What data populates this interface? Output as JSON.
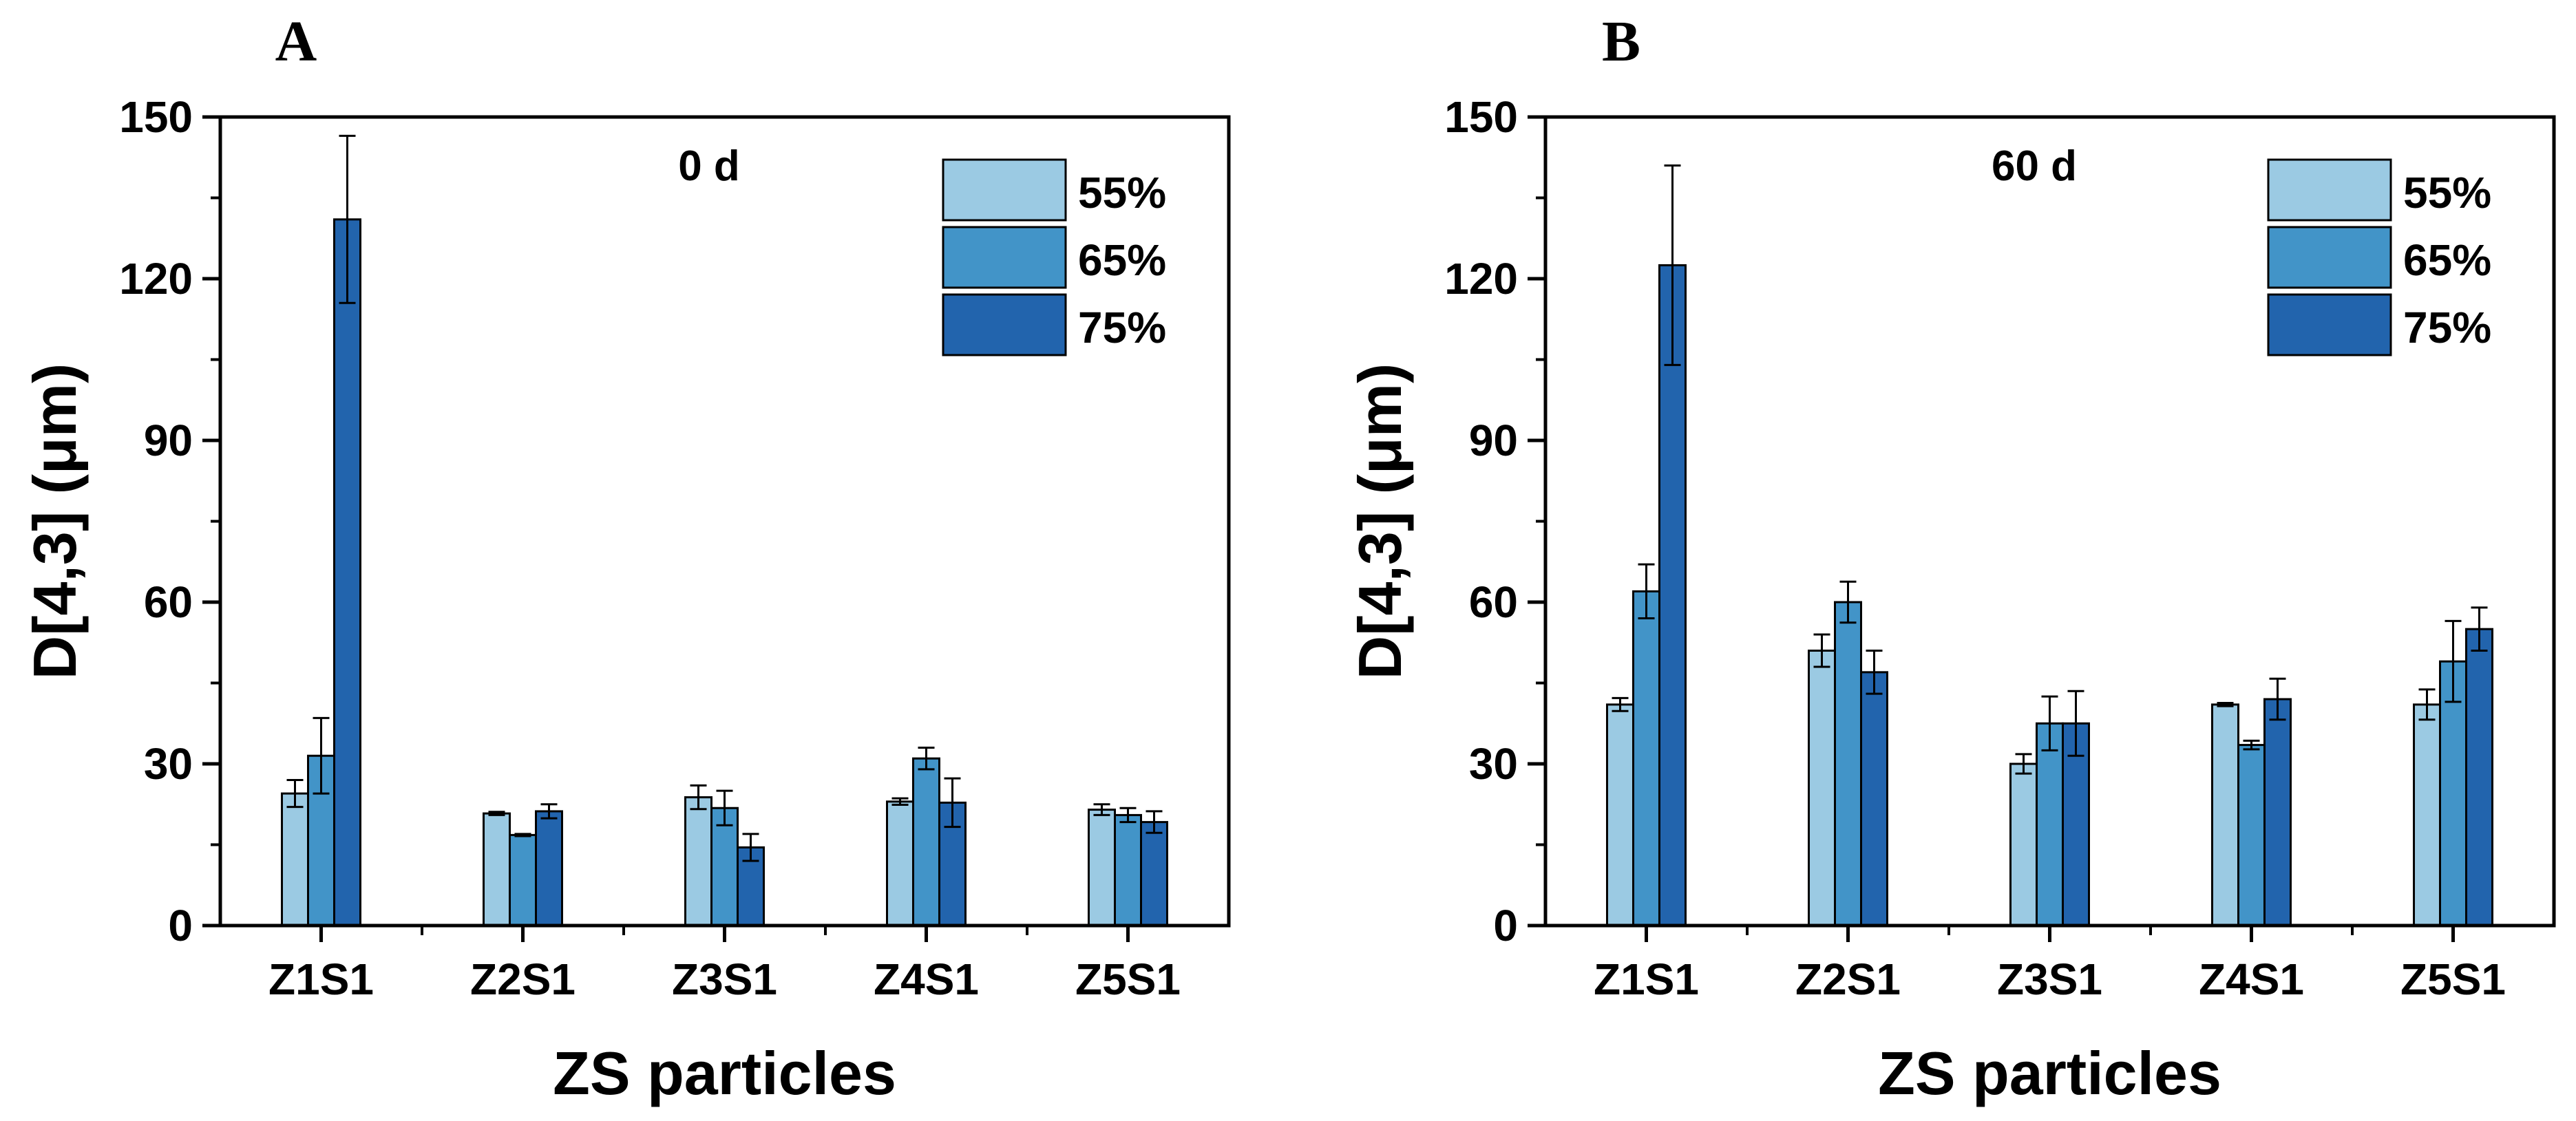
{
  "chart_data": [
    {
      "type": "bar",
      "panel_label": "A",
      "annotation": "0 d",
      "xlabel": "ZS particles",
      "ylabel": "D[4,3] (μm)",
      "ylim": [
        0,
        150
      ],
      "yticks": [
        0,
        30,
        60,
        90,
        120,
        150
      ],
      "categories": [
        "Z1S1",
        "Z2S1",
        "Z3S1",
        "Z4S1",
        "Z5S1"
      ],
      "legend_position": "top-right",
      "series": [
        {
          "name": "55%",
          "color": "#9BCAE3",
          "values": [
            24.5,
            20.8,
            23.8,
            23.0,
            21.5
          ],
          "errors": [
            2.5,
            0.3,
            2.2,
            0.6,
            1.0
          ]
        },
        {
          "name": "65%",
          "color": "#4294C8",
          "values": [
            31.5,
            16.8,
            21.8,
            31.0,
            20.5
          ],
          "errors": [
            7.0,
            0.2,
            3.2,
            2.0,
            1.3
          ]
        },
        {
          "name": "75%",
          "color": "#2264AD",
          "values": [
            131.0,
            21.2,
            14.5,
            22.8,
            19.2
          ],
          "errors": [
            15.5,
            1.3,
            2.5,
            4.5,
            2.0
          ]
        }
      ]
    },
    {
      "type": "bar",
      "panel_label": "B",
      "annotation": "60 d",
      "xlabel": "ZS particles",
      "ylabel": "D[4,3] (μm)",
      "ylim": [
        0,
        150
      ],
      "yticks": [
        0,
        30,
        60,
        90,
        120,
        150
      ],
      "categories": [
        "Z1S1",
        "Z2S1",
        "Z3S1",
        "Z4S1",
        "Z5S1"
      ],
      "legend_position": "top-right",
      "series": [
        {
          "name": "55%",
          "color": "#9BCAE3",
          "values": [
            41.0,
            51.0,
            30.0,
            41.0,
            41.0
          ],
          "errors": [
            1.2,
            3.0,
            1.8,
            0.3,
            2.8
          ]
        },
        {
          "name": "65%",
          "color": "#4294C8",
          "values": [
            62.0,
            60.0,
            37.5,
            33.5,
            49.0
          ],
          "errors": [
            5.0,
            3.8,
            5.0,
            0.8,
            7.5
          ]
        },
        {
          "name": "75%",
          "color": "#2264AD",
          "values": [
            122.5,
            47.0,
            37.5,
            42.0,
            55.0
          ],
          "errors": [
            18.5,
            4.0,
            6.0,
            3.8,
            4.0
          ]
        }
      ]
    }
  ]
}
